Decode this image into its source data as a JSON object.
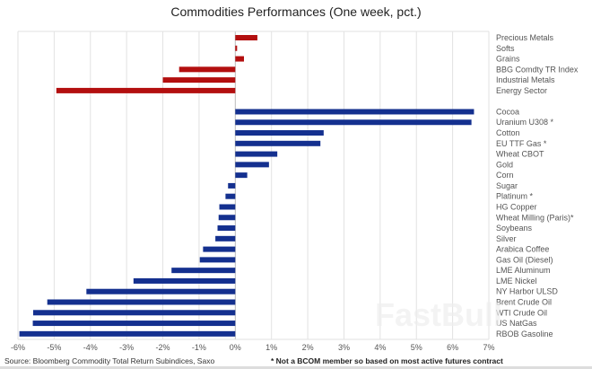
{
  "chart_data": {
    "type": "bar",
    "orientation": "horizontal",
    "title": "Commodities Performances (One week, pct.)",
    "xlabel": "",
    "ylabel": "",
    "xlim": [
      -6,
      7
    ],
    "x_ticks": [
      "-6%",
      "-5%",
      "-4%",
      "-3%",
      "-2%",
      "-1%",
      "0%",
      "1%",
      "2%",
      "3%",
      "4%",
      "5%",
      "6%",
      "7%"
    ],
    "grid": "vertical",
    "groups": [
      {
        "color": "#b30f0f",
        "categories": [
          "Precious Metals",
          "Softs",
          "Grains",
          "BBG Comdty TR Index",
          "Industrial Metals",
          "Energy Sector"
        ],
        "values": [
          0.61,
          0.05,
          0.24,
          -1.55,
          -2.0,
          -4.94
        ]
      },
      {
        "color": "#14308f",
        "categories": [
          "Cocoa",
          "Uranium U308 *",
          "Cotton",
          "EU TTF Gas *",
          "Wheat CBOT",
          "Gold",
          "Corn",
          "Sugar",
          "Platinum *",
          "HG Copper",
          "Wheat Milling (Paris)*",
          "Soybeans",
          "Silver",
          "Arabica Coffee",
          "Gas Oil (Diesel)",
          "LME Aluminum",
          "LME Nickel",
          "NY Harbor ULSD",
          "Brent Crude Oil",
          "WTI Crude Oil",
          "US NatGas",
          "RBOB Gasoline"
        ],
        "values": [
          6.59,
          6.52,
          2.44,
          2.35,
          1.16,
          0.93,
          0.33,
          -0.2,
          -0.27,
          -0.44,
          -0.46,
          -0.49,
          -0.55,
          -0.89,
          -0.98,
          -1.76,
          -2.81,
          -4.11,
          -5.19,
          -5.58,
          -5.59,
          -5.96
        ]
      }
    ]
  },
  "footer": {
    "source": "Source: Bloomberg Commodity Total Return Subindices, Saxo",
    "note": "* Not a BCOM member so based on most active futures contract"
  },
  "watermark": "FastBull"
}
